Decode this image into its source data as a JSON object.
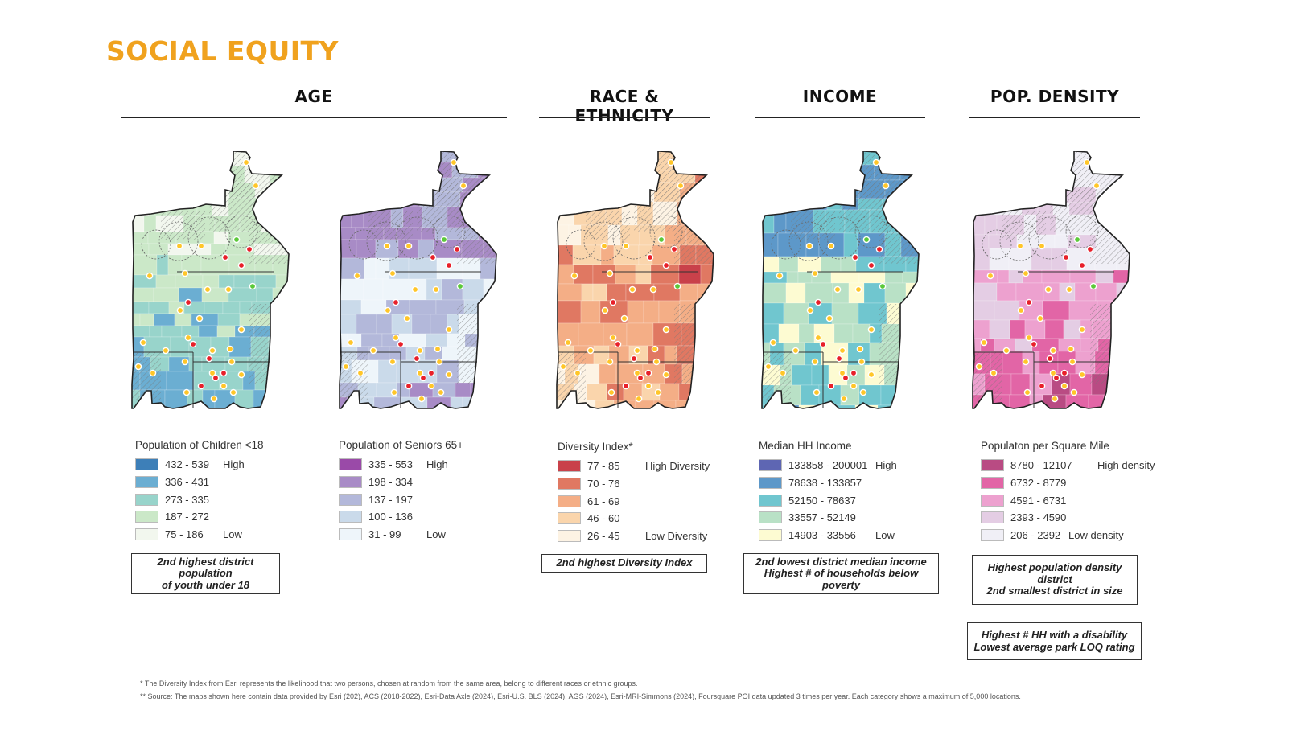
{
  "title": "SOCIAL EQUITY",
  "sections": {
    "age": "AGE",
    "race": "RACE & ETHNICITY",
    "income": "INCOME",
    "density": "POP. DENSITY"
  },
  "colors": {
    "title": "#F0A21E",
    "marker_yellow": "#FFC629",
    "marker_red": "#E8202A",
    "marker_green": "#5CC93A"
  },
  "maps": [
    {
      "id": "children",
      "legend_title": "Population of Children <18",
      "classes": [
        {
          "range": "432 - 539",
          "label": "High",
          "color": "#3D7FB8"
        },
        {
          "range": "336 - 431",
          "label": "",
          "color": "#6BAED2"
        },
        {
          "range": "273 - 335",
          "label": "",
          "color": "#98D4CB"
        },
        {
          "range": "187 - 272",
          "label": "",
          "color": "#CBE8C8"
        },
        {
          "range": "75 - 186",
          "label": "Low",
          "color": "#F2F7EE"
        }
      ]
    },
    {
      "id": "seniors",
      "legend_title": "Population of Seniors 65+",
      "classes": [
        {
          "range": "335 - 553",
          "label": "High",
          "color": "#9A4AA8"
        },
        {
          "range": "198 - 334",
          "label": "",
          "color": "#A88BC6"
        },
        {
          "range": "137 - 197",
          "label": "",
          "color": "#B3B8DA"
        },
        {
          "range": "100 - 136",
          "label": "",
          "color": "#CADAEA"
        },
        {
          "range": "31 - 99",
          "label": "Low",
          "color": "#EEF5FA"
        }
      ]
    },
    {
      "id": "diversity",
      "legend_title": "Diversity Index*",
      "classes": [
        {
          "range": "77 - 85",
          "label": "High Diversity",
          "color": "#C9414A"
        },
        {
          "range": "70 - 76",
          "label": "",
          "color": "#E07862"
        },
        {
          "range": "61 - 69",
          "label": "",
          "color": "#F4AE86"
        },
        {
          "range": "46 - 60",
          "label": "",
          "color": "#FAD5AC"
        },
        {
          "range": "26 - 45",
          "label": "Low Diversity",
          "color": "#FDF3E4"
        }
      ]
    },
    {
      "id": "income",
      "legend_title": "Median HH Income",
      "classes": [
        {
          "range": "133858 - 200001",
          "label": "High",
          "color": "#5E66B3"
        },
        {
          "range": "78638 - 133857",
          "label": "",
          "color": "#5D98C9"
        },
        {
          "range": "52150 - 78637",
          "label": "",
          "color": "#70C6CF"
        },
        {
          "range": "33557 - 52149",
          "label": "",
          "color": "#B9E1C6"
        },
        {
          "range": "14903 - 33556",
          "label": "Low",
          "color": "#FDFBD2"
        }
      ]
    },
    {
      "id": "density",
      "legend_title": "Populaton per Square Mile",
      "classes": [
        {
          "range": "8780 - 12107",
          "label": "High density",
          "color": "#B94B83"
        },
        {
          "range": "6732 - 8779",
          "label": "",
          "color": "#E265A6"
        },
        {
          "range": "4591 - 6731",
          "label": "",
          "color": "#EDA1CF"
        },
        {
          "range": "2393 - 4590",
          "label": "",
          "color": "#E4CDE4"
        },
        {
          "range": "206 - 2392",
          "label": "Low density",
          "color": "#F0EFF6"
        }
      ]
    }
  ],
  "notes": {
    "age": [
      "2nd highest district",
      "population",
      "of youth under 18"
    ],
    "race": [
      "2nd highest Diversity Index"
    ],
    "income": [
      "2nd lowest district median income",
      "Highest # of households below",
      "poverty"
    ],
    "density1": [
      "Highest population density",
      "district",
      "2nd smallest district in size"
    ],
    "density2": [
      "Highest # HH with a disability",
      "Lowest average park LOQ rating"
    ]
  },
  "footnotes": [
    "* The Diversity Index from Esri represents the likelihood that two persons, chosen at random from the same area, belong to different races or ethnic groups.",
    "** Source: The maps shown here contain data provided by Esri (202), ACS (2018-2022), Esri-Data Axle (2024), Esri-U.S. BLS (2024), AGS (2024), Esri-MRI-Simmons (2024), Foursquare POI data updated 3 times per year. Each category shows a maximum of 5,000 locations."
  ]
}
